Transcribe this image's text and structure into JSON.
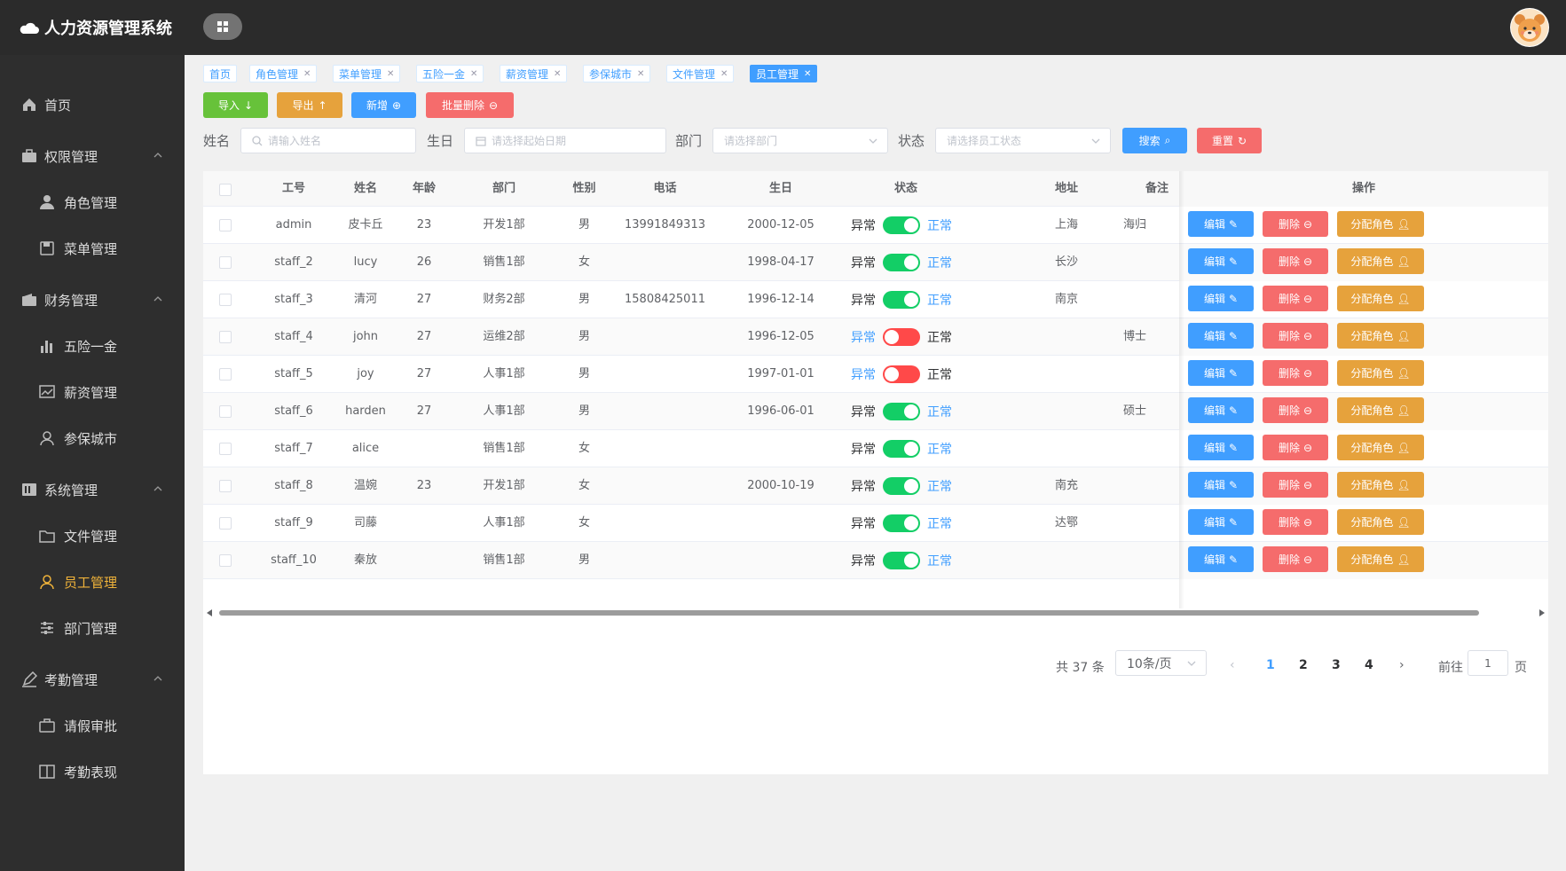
{
  "app_title": "人力资源管理系统",
  "sidebar": {
    "home": "首页",
    "groups": [
      {
        "label": "权限管理",
        "items": [
          "角色管理",
          "菜单管理"
        ]
      },
      {
        "label": "财务管理",
        "items": [
          "五险一金",
          "薪资管理",
          "参保城市"
        ]
      },
      {
        "label": "系统管理",
        "items": [
          "文件管理",
          "员工管理",
          "部门管理"
        ]
      },
      {
        "label": "考勤管理",
        "items": [
          "请假审批",
          "考勤表现"
        ]
      }
    ],
    "active_item": "员工管理"
  },
  "tabs": [
    "首页",
    "角色管理",
    "菜单管理",
    "五险一金",
    "薪资管理",
    "参保城市",
    "文件管理",
    "员工管理"
  ],
  "active_tab": "员工管理",
  "toolbar": {
    "import": "导入",
    "export": "导出",
    "add": "新增",
    "batch_delete": "批量删除"
  },
  "search": {
    "name_label": "姓名",
    "name_placeholder": "请输入姓名",
    "birthday_label": "生日",
    "birthday_placeholder": "请选择起始日期",
    "dept_label": "部门",
    "dept_placeholder": "请选择部门",
    "status_label": "状态",
    "status_placeholder": "请选择员工状态",
    "search_btn": "搜索",
    "reset_btn": "重置"
  },
  "table": {
    "columns": [
      "工号",
      "姓名",
      "年龄",
      "部门",
      "性别",
      "电话",
      "生日",
      "状态",
      "地址",
      "备注",
      "操作"
    ],
    "status_off": "异常",
    "status_on": "正常",
    "actions": {
      "edit": "编辑",
      "delete": "删除",
      "assign": "分配角色"
    },
    "rows": [
      {
        "id": "admin",
        "name": "皮卡丘",
        "age": "23",
        "dept": "开发1部",
        "gender": "男",
        "phone": "13991849313",
        "birthday": "2000-12-05",
        "status": true,
        "address": "上海",
        "remark": "海归"
      },
      {
        "id": "staff_2",
        "name": "lucy",
        "age": "26",
        "dept": "销售1部",
        "gender": "女",
        "phone": "",
        "birthday": "1998-04-17",
        "status": true,
        "address": "长沙",
        "remark": ""
      },
      {
        "id": "staff_3",
        "name": "清河",
        "age": "27",
        "dept": "财务2部",
        "gender": "男",
        "phone": "15808425011",
        "birthday": "1996-12-14",
        "status": true,
        "address": "南京",
        "remark": ""
      },
      {
        "id": "staff_4",
        "name": "john",
        "age": "27",
        "dept": "运维2部",
        "gender": "男",
        "phone": "",
        "birthday": "1996-12-05",
        "status": false,
        "address": "",
        "remark": "博士"
      },
      {
        "id": "staff_5",
        "name": "joy",
        "age": "27",
        "dept": "人事1部",
        "gender": "男",
        "phone": "",
        "birthday": "1997-01-01",
        "status": false,
        "address": "",
        "remark": ""
      },
      {
        "id": "staff_6",
        "name": "harden",
        "age": "27",
        "dept": "人事1部",
        "gender": "男",
        "phone": "",
        "birthday": "1996-06-01",
        "status": true,
        "address": "",
        "remark": "硕士"
      },
      {
        "id": "staff_7",
        "name": "alice",
        "age": "",
        "dept": "销售1部",
        "gender": "女",
        "phone": "",
        "birthday": "",
        "status": true,
        "address": "",
        "remark": ""
      },
      {
        "id": "staff_8",
        "name": "温婉",
        "age": "23",
        "dept": "开发1部",
        "gender": "女",
        "phone": "",
        "birthday": "2000-10-19",
        "status": true,
        "address": "南充",
        "remark": ""
      },
      {
        "id": "staff_9",
        "name": "司藤",
        "age": "",
        "dept": "人事1部",
        "gender": "女",
        "phone": "",
        "birthday": "",
        "status": true,
        "address": "达鄂",
        "remark": ""
      },
      {
        "id": "staff_10",
        "name": "秦放",
        "age": "",
        "dept": "销售1部",
        "gender": "男",
        "phone": "",
        "birthday": "",
        "status": true,
        "address": "",
        "remark": ""
      }
    ]
  },
  "pagination": {
    "total": "共 37 条",
    "page_size": "10条/页",
    "pages": [
      "1",
      "2",
      "3",
      "4"
    ],
    "current": "1",
    "goto_label": "前往",
    "goto_value": "1",
    "page_unit": "页"
  },
  "colors": {
    "primary": "#409eff",
    "success": "#67c23a",
    "warning": "#e6a23c",
    "danger": "#f56c6c",
    "switch_on": "#13ce66",
    "switch_off": "#ff4949",
    "sidebar_active": "#f0b33a"
  }
}
